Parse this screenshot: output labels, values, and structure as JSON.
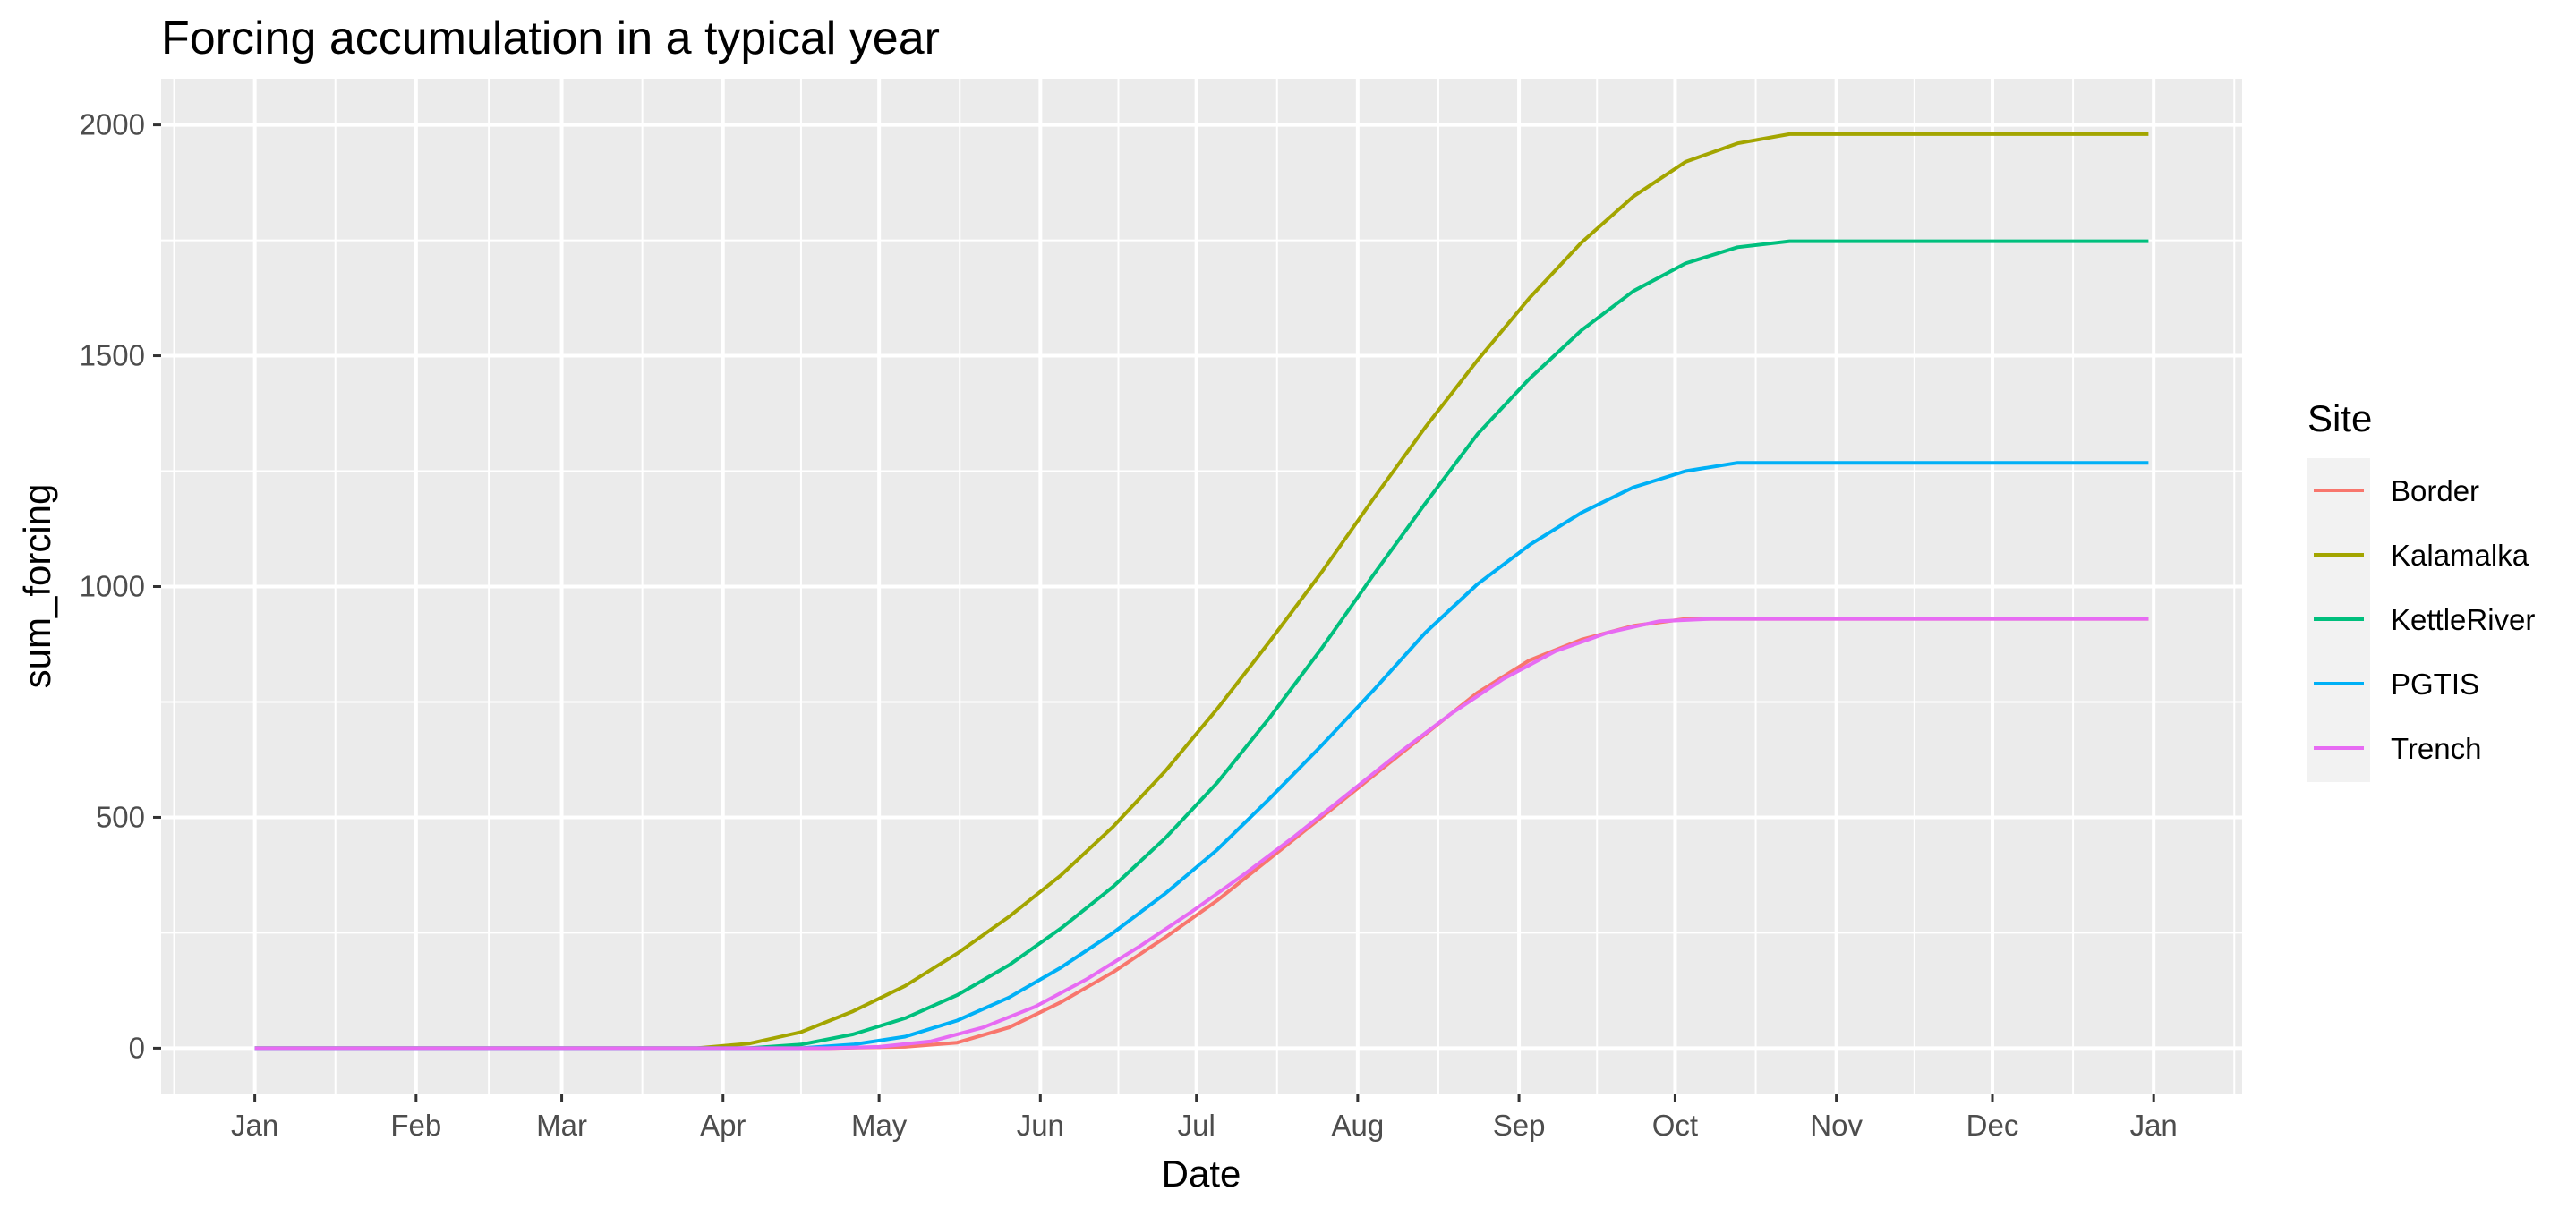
{
  "chart_data": {
    "type": "line",
    "title": "Forcing accumulation in a typical year",
    "xlabel": "Date",
    "ylabel": "sum_forcing",
    "x_ticks": [
      {
        "label": "Jan",
        "day": 0
      },
      {
        "label": "Feb",
        "day": 31
      },
      {
        "label": "Mar",
        "day": 59
      },
      {
        "label": "Apr",
        "day": 90
      },
      {
        "label": "May",
        "day": 120
      },
      {
        "label": "Jun",
        "day": 151
      },
      {
        "label": "Jul",
        "day": 181
      },
      {
        "label": "Aug",
        "day": 212
      },
      {
        "label": "Sep",
        "day": 243
      },
      {
        "label": "Oct",
        "day": 273
      },
      {
        "label": "Nov",
        "day": 304
      },
      {
        "label": "Dec",
        "day": 334
      },
      {
        "label": "Jan",
        "day": 365
      }
    ],
    "y_ticks": [
      0,
      500,
      1000,
      1500,
      2000
    ],
    "xlim": [
      -18,
      382
    ],
    "ylim": [
      -100,
      2100
    ],
    "grid": true,
    "legend": {
      "title": "Site",
      "position": "right"
    },
    "series": [
      {
        "name": "Border",
        "color": "#F8766D",
        "points": [
          [
            0,
            0
          ],
          [
            110,
            0
          ],
          [
            125,
            3
          ],
          [
            135,
            12
          ],
          [
            145,
            45
          ],
          [
            155,
            100
          ],
          [
            165,
            165
          ],
          [
            175,
            240
          ],
          [
            185,
            320
          ],
          [
            195,
            410
          ],
          [
            205,
            500
          ],
          [
            215,
            590
          ],
          [
            225,
            680
          ],
          [
            235,
            770
          ],
          [
            245,
            840
          ],
          [
            255,
            885
          ],
          [
            265,
            915
          ],
          [
            275,
            930
          ],
          [
            364,
            930
          ]
        ]
      },
      {
        "name": "Kalamalka",
        "color": "#A3A500",
        "points": [
          [
            0,
            0
          ],
          [
            85,
            0
          ],
          [
            95,
            10
          ],
          [
            105,
            35
          ],
          [
            115,
            80
          ],
          [
            125,
            135
          ],
          [
            135,
            205
          ],
          [
            145,
            285
          ],
          [
            155,
            375
          ],
          [
            165,
            480
          ],
          [
            175,
            600
          ],
          [
            185,
            735
          ],
          [
            195,
            880
          ],
          [
            205,
            1030
          ],
          [
            215,
            1190
          ],
          [
            225,
            1345
          ],
          [
            235,
            1490
          ],
          [
            245,
            1625
          ],
          [
            255,
            1745
          ],
          [
            265,
            1845
          ],
          [
            275,
            1920
          ],
          [
            285,
            1960
          ],
          [
            295,
            1980
          ],
          [
            364,
            1980
          ]
        ]
      },
      {
        "name": "KettleRiver",
        "color": "#00BF7D",
        "points": [
          [
            0,
            0
          ],
          [
            95,
            0
          ],
          [
            105,
            8
          ],
          [
            115,
            30
          ],
          [
            125,
            65
          ],
          [
            135,
            115
          ],
          [
            145,
            180
          ],
          [
            155,
            260
          ],
          [
            165,
            350
          ],
          [
            175,
            455
          ],
          [
            185,
            575
          ],
          [
            195,
            715
          ],
          [
            205,
            865
          ],
          [
            215,
            1025
          ],
          [
            225,
            1180
          ],
          [
            235,
            1330
          ],
          [
            245,
            1450
          ],
          [
            255,
            1555
          ],
          [
            265,
            1640
          ],
          [
            275,
            1700
          ],
          [
            285,
            1735
          ],
          [
            295,
            1748
          ],
          [
            364,
            1748
          ]
        ]
      },
      {
        "name": "PGTIS",
        "color": "#00B0F6",
        "points": [
          [
            0,
            0
          ],
          [
            105,
            0
          ],
          [
            115,
            8
          ],
          [
            125,
            25
          ],
          [
            135,
            60
          ],
          [
            145,
            110
          ],
          [
            155,
            175
          ],
          [
            165,
            250
          ],
          [
            175,
            335
          ],
          [
            185,
            430
          ],
          [
            195,
            540
          ],
          [
            205,
            655
          ],
          [
            215,
            775
          ],
          [
            225,
            900
          ],
          [
            235,
            1005
          ],
          [
            245,
            1090
          ],
          [
            255,
            1160
          ],
          [
            265,
            1215
          ],
          [
            275,
            1250
          ],
          [
            285,
            1268
          ],
          [
            364,
            1268
          ]
        ]
      },
      {
        "name": "Trench",
        "color": "#E76BF3",
        "points": [
          [
            0,
            0
          ],
          [
            110,
            0
          ],
          [
            120,
            3
          ],
          [
            130,
            15
          ],
          [
            140,
            45
          ],
          [
            150,
            90
          ],
          [
            160,
            150
          ],
          [
            170,
            220
          ],
          [
            180,
            295
          ],
          [
            190,
            375
          ],
          [
            200,
            460
          ],
          [
            210,
            550
          ],
          [
            220,
            640
          ],
          [
            230,
            725
          ],
          [
            240,
            800
          ],
          [
            250,
            860
          ],
          [
            260,
            900
          ],
          [
            270,
            925
          ],
          [
            280,
            930
          ],
          [
            364,
            930
          ]
        ]
      }
    ]
  }
}
